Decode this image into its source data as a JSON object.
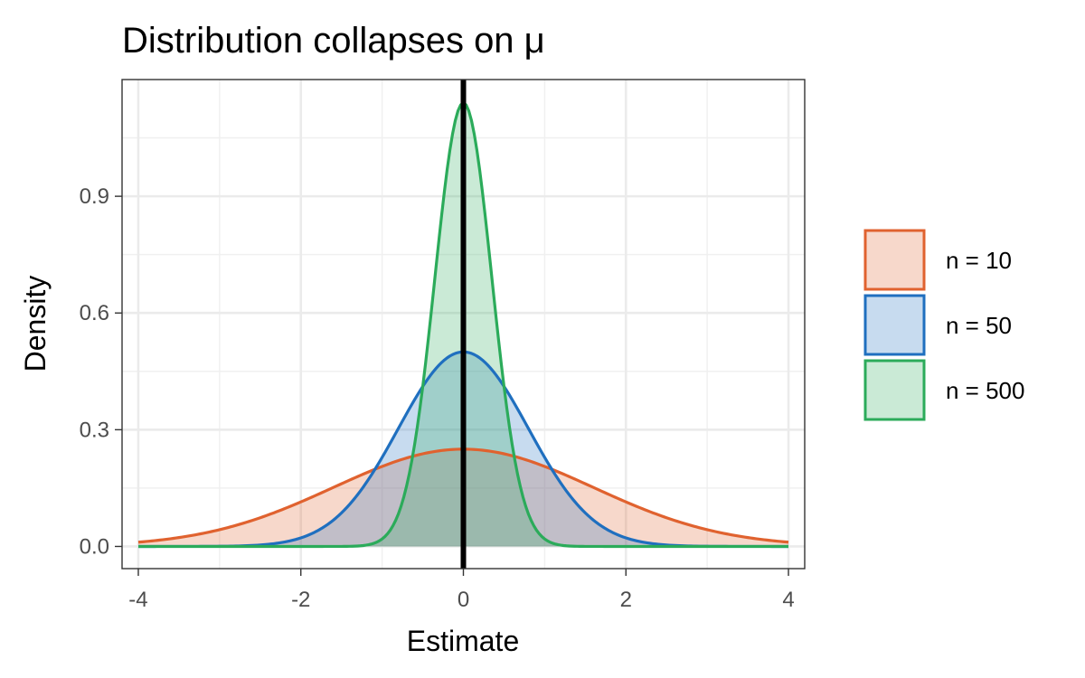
{
  "chart_data": {
    "type": "area",
    "title": "Distribution collapses on μ",
    "xlabel": "Estimate",
    "ylabel": "Density",
    "xlim": [
      -4.2,
      4.2
    ],
    "ylim": [
      -0.057,
      1.2
    ],
    "x_ticks": [
      -4,
      -2,
      0,
      2,
      4
    ],
    "x_tick_labels": [
      "-4",
      "-2",
      "0",
      "2",
      "4"
    ],
    "y_ticks": [
      0.0,
      0.3,
      0.6,
      0.9
    ],
    "y_tick_labels": [
      "0.0",
      "0.3",
      "0.6",
      "0.9"
    ],
    "x_domain": [
      -4,
      4
    ],
    "grid": true,
    "legend_position": "right",
    "reference_line": {
      "x": 0,
      "color": "#000000"
    },
    "series": [
      {
        "name": "n = 10",
        "mean": 0,
        "sd": 1.6,
        "peak": 0.25,
        "color": "#e0622f",
        "fill": "#f5d3c7"
      },
      {
        "name": "n = 50",
        "mean": 0,
        "sd": 0.8,
        "peak": 0.5,
        "color": "#1f6fbf",
        "fill": "#c6dbef"
      },
      {
        "name": "n = 500",
        "mean": 0,
        "sd": 0.35,
        "peak": 1.14,
        "color": "#2bab5a",
        "fill": "#c9ebd5"
      }
    ]
  }
}
